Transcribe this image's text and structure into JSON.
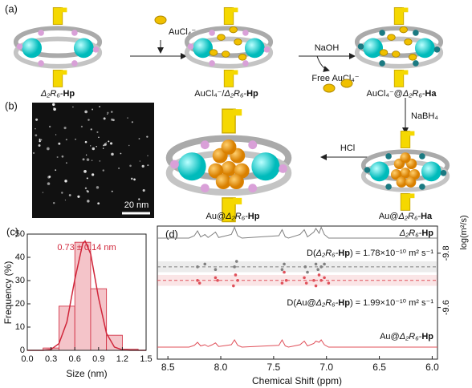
{
  "panel_labels": [
    "(a)",
    "(b)",
    "(c)",
    "(d)"
  ],
  "scheme": {
    "reagents": {
      "aucl4": "AuCl₄⁻",
      "naoh": "NaOH",
      "free": "Free AuCl₄⁻",
      "nabh4": "NaBH₄",
      "hcl": "HCl"
    },
    "compounds": [
      [
        {
          "text": "Δ₂R₆-",
          "style": "italic"
        },
        {
          "text": "Hp",
          "style": "bold"
        }
      ],
      [
        {
          "text": "AuCl₄⁻/",
          "style": "normal"
        },
        {
          "text": "Δ₂R₆-",
          "style": "italic"
        },
        {
          "text": "Hp",
          "style": "bold"
        }
      ],
      [
        {
          "text": "AuCl₄⁻@",
          "style": "normal"
        },
        {
          "text": "Δ₂R₆-",
          "style": "italic"
        },
        {
          "text": "Ha",
          "style": "bold"
        }
      ],
      [
        {
          "text": "Au@",
          "style": "normal"
        },
        {
          "text": "Δ₂R₆-",
          "style": "italic"
        },
        {
          "text": "Ha",
          "style": "bold"
        }
      ],
      [
        {
          "text": "Au@",
          "style": "normal"
        },
        {
          "text": "Δ₂R₆-",
          "style": "italic"
        },
        {
          "text": "Hp",
          "style": "bold"
        }
      ]
    ]
  },
  "tem": {
    "scale_bar": "20 nm"
  },
  "chart_data": [
    {
      "type": "histogram",
      "title": "0.73 ± 0.14 nm",
      "xlabel": "Size (nm)",
      "ylabel": "Frequency (%)",
      "bins": [
        0.2,
        0.4,
        0.6,
        0.8,
        1.0,
        1.2,
        1.4
      ],
      "values": [
        1,
        19,
        46.5,
        26.5,
        6.5,
        0.5
      ],
      "color": "#f4c4c9",
      "edge_color": "#d0263a",
      "fit": {
        "x": [
          0.0,
          0.2,
          0.3,
          0.4,
          0.5,
          0.6,
          0.7,
          0.73,
          0.8,
          0.9,
          1.0,
          1.1,
          1.2,
          1.3,
          1.5
        ],
        "values": [
          0,
          0,
          0.4,
          2.9,
          12.2,
          30.5,
          45.9,
          47,
          41.5,
          22.5,
          7.3,
          1.4,
          0.2,
          0,
          0
        ],
        "color": "#d0263a"
      },
      "xlim": [
        0,
        1.5
      ],
      "xticks": [
        {
          "value": 0,
          "label": "0.0"
        },
        0.3,
        0.6,
        0.9,
        1.2,
        1.5
      ],
      "ylim": [
        0,
        50
      ],
      "yticks": [
        0,
        10,
        20,
        30,
        40,
        50
      ]
    },
    {
      "type": "nmr",
      "xlabel": "Chemical Shift (ppm)",
      "y2label": "log(m²/s)",
      "xlim": [
        8.6,
        5.95
      ],
      "xticks": [
        8.5,
        {
          "value": 8,
          "label": "8.0"
        },
        7.5,
        {
          "value": 7,
          "label": "7.0"
        },
        6.5,
        {
          "value": 6,
          "label": "6.0"
        }
      ],
      "y2lim": [
        -9.9,
        -9.41
      ],
      "y2ticks": [
        -9.8,
        -9.6
      ],
      "spectra": [
        {
          "name": [
            {
              "text": "Δ₂R₆-",
              "style": "italic"
            },
            {
              "text": "Hp",
              "style": "bold"
            }
          ],
          "color": "#808080",
          "x": [
            8.6,
            8.3,
            8.25,
            8.22,
            8.19,
            8.15,
            8.12,
            8.08,
            8.05,
            8.02,
            7.9,
            7.87,
            7.84,
            7.8,
            7.45,
            7.42,
            7.39,
            7.36,
            7.25,
            7.21,
            7.18,
            7.12,
            7.1,
            7.07,
            7.05,
            7.02,
            6.98,
            6.9,
            5.95
          ],
          "values": [
            0,
            0,
            2,
            6,
            1,
            3,
            0.5,
            3,
            5,
            0.5,
            3,
            9,
            2,
            0,
            2,
            7,
            1,
            0,
            3,
            7,
            1,
            5,
            8,
            4,
            9,
            3,
            0,
            0,
            0
          ]
        },
        {
          "name": [
            {
              "text": "Au@",
              "style": "normal"
            },
            {
              "text": "Δ₂R₆-",
              "style": "italic"
            },
            {
              "text": "Hp",
              "style": "bold"
            }
          ],
          "color": "#e0505a",
          "x": [
            8.6,
            8.3,
            8.25,
            8.22,
            8.19,
            8.15,
            8.12,
            8.08,
            8.05,
            8.02,
            7.9,
            7.87,
            7.84,
            7.8,
            7.45,
            7.42,
            7.39,
            7.36,
            7.25,
            7.21,
            7.18,
            7.12,
            7.1,
            7.07,
            7.05,
            7.02,
            6.98,
            6.9,
            5.95
          ],
          "values": [
            0,
            0,
            1.5,
            4,
            1,
            2,
            0.5,
            2,
            3.5,
            0.5,
            2,
            6,
            1.5,
            0,
            1.5,
            6,
            1,
            0,
            2,
            5,
            1,
            3,
            5,
            4,
            6,
            2,
            0,
            0,
            0
          ]
        }
      ],
      "dosy": [
        {
          "label": [
            {
              "text": "D(",
              "style": "normal"
            },
            {
              "text": "Δ₂R₆-",
              "style": "italic"
            },
            {
              "text": "Hp",
              "style": "bold"
            },
            {
              "text": ") = 1.78×10⁻¹⁰ m² s⁻¹",
              "style": "normal"
            }
          ],
          "color": "#808080",
          "axis": "y2",
          "reference": -9.75,
          "x": [
            8.22,
            8.15,
            8.05,
            7.87,
            7.85,
            7.42,
            7.4,
            7.2,
            7.18,
            7.1,
            7.08,
            7.05,
            7.02
          ],
          "values": [
            -9.75,
            -9.76,
            -9.74,
            -9.75,
            -9.77,
            -9.74,
            -9.76,
            -9.75,
            -9.73,
            -9.76,
            -9.74,
            -9.75,
            -9.76
          ]
        },
        {
          "label": [
            {
              "text": "D(Au@",
              "style": "normal"
            },
            {
              "text": "Δ₂R₆-",
              "style": "italic"
            },
            {
              "text": "Hp",
              "style": "bold"
            },
            {
              "text": ") = 1.99×10⁻¹⁰ m² s⁻¹",
              "style": "normal"
            }
          ],
          "color": "#e0505a",
          "axis": "y2",
          "reference": -9.7,
          "x": [
            8.22,
            8.2,
            8.05,
            8.03,
            7.88,
            7.86,
            7.84,
            7.42,
            7.4,
            7.38,
            7.21,
            7.19,
            7.12,
            7.1,
            7.07,
            7.05,
            7.02,
            6.98
          ],
          "values": [
            -9.7,
            -9.69,
            -9.71,
            -9.7,
            -9.68,
            -9.72,
            -9.7,
            -9.69,
            -9.73,
            -9.7,
            -9.71,
            -9.69,
            -9.7,
            -9.68,
            -9.72,
            -9.7,
            -9.71,
            -9.69
          ]
        }
      ]
    }
  ]
}
